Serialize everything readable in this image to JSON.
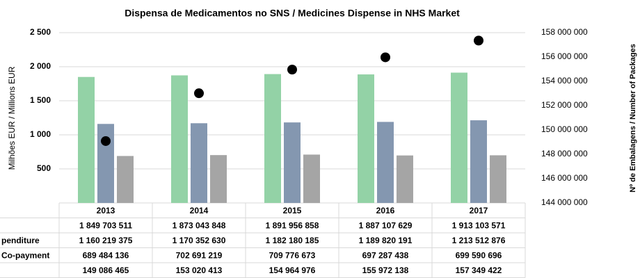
{
  "chart_data": {
    "type": "bar",
    "title": "Dispensa de Medicamentos no SNS / Medicines Dispense in NHS Market",
    "y_label": "Milhões EUR / Millions EUR",
    "y2_label": "Nº de Embalagens / Number of Packages",
    "categories": [
      "2013",
      "2014",
      "2015",
      "2016",
      "2017"
    ],
    "ylim": [
      0,
      2500
    ],
    "yticks": [
      500,
      {
        "value": 1000,
        "label": "1 000"
      },
      {
        "value": 1500,
        "label": "1 500"
      },
      {
        "value": 2000,
        "label": "2 000"
      },
      {
        "value": 2500,
        "label": "2 500"
      }
    ],
    "y2lim": [
      144000000,
      158000000
    ],
    "y2ticks": [
      {
        "value": 144000000,
        "label": "144 000 000"
      },
      {
        "value": 146000000,
        "label": "146 000 000"
      },
      {
        "value": 148000000,
        "label": "148 000 000"
      },
      {
        "value": 150000000,
        "label": "150 000 000"
      },
      {
        "value": 152000000,
        "label": "152 000 000"
      },
      {
        "value": 154000000,
        "label": "154 000 000"
      },
      {
        "value": 156000000,
        "label": "156 000 000"
      },
      {
        "value": 158000000,
        "label": "158 000 000"
      }
    ],
    "grid": true,
    "series": [
      {
        "name": null,
        "color": "#93d2a6",
        "values": [
          1849.703511,
          1873.043848,
          1891.956858,
          1887.107629,
          1913.103571
        ],
        "value_labels": [
          "1 849 703 511",
          "1 873 043 848",
          "1 891 956 858",
          "1 887 107 629",
          "1 913 103 571"
        ]
      },
      {
        "name": "penditure",
        "color": "#8497b0",
        "values": [
          1160.219375,
          1170.35263,
          1182.180185,
          1189.820191,
          1213.512876
        ],
        "value_labels": [
          "1 160 219 375",
          "1 170 352 630",
          "1 182 180 185",
          "1 189 820 191",
          "1 213 512 876"
        ]
      },
      {
        "name": "Co-payment",
        "color": "#a5a5a5",
        "values": [
          689.484136,
          702.691219,
          709.776673,
          697.287438,
          699.590696
        ],
        "value_labels": [
          "689 484 136",
          "702 691 219",
          "709 776 673",
          "697 287 438",
          "699 590 696"
        ]
      },
      {
        "name": null,
        "color": "#000000",
        "type": "scatter",
        "axis": "y2",
        "values": [
          149086465,
          153020413,
          154964976,
          155972138,
          157349422
        ],
        "value_labels": [
          "149 086 465",
          "153 020 413",
          "154 964 976",
          "155 972 138",
          "157 349 422"
        ]
      }
    ]
  }
}
